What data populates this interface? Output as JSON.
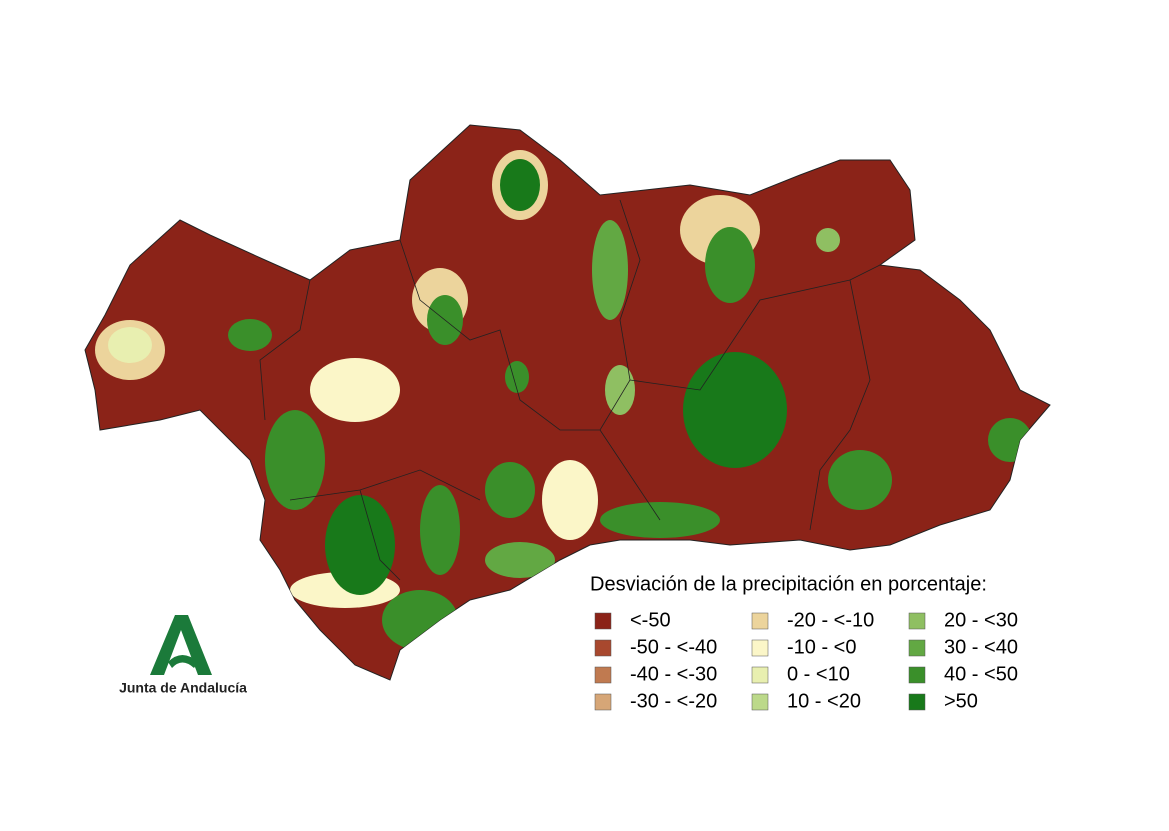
{
  "legend": {
    "title": "Desviación de la precipitación en porcentaje:",
    "items": [
      {
        "label": "<-50",
        "color": "#8b2318"
      },
      {
        "label": "-50 - <-40",
        "color": "#a8482e"
      },
      {
        "label": "-40 - <-30",
        "color": "#c07a50"
      },
      {
        "label": "-30 - <-20",
        "color": "#d6a677"
      },
      {
        "label": "-20 - <-10",
        "color": "#ecd49c"
      },
      {
        "label": "-10 - <0",
        "color": "#fbf6c8"
      },
      {
        "label": "0 - <10",
        "color": "#e8efb0"
      },
      {
        "label": "10 - <20",
        "color": "#bcd98a"
      },
      {
        "label": "20 - <30",
        "color": "#8fbf62"
      },
      {
        "label": "30 - <40",
        "color": "#62a843"
      },
      {
        "label": "40 - <50",
        "color": "#3a8f2a"
      },
      {
        "label": ">50",
        "color": "#18791a"
      }
    ]
  },
  "logo": {
    "text": "Junta de Andalucía"
  }
}
